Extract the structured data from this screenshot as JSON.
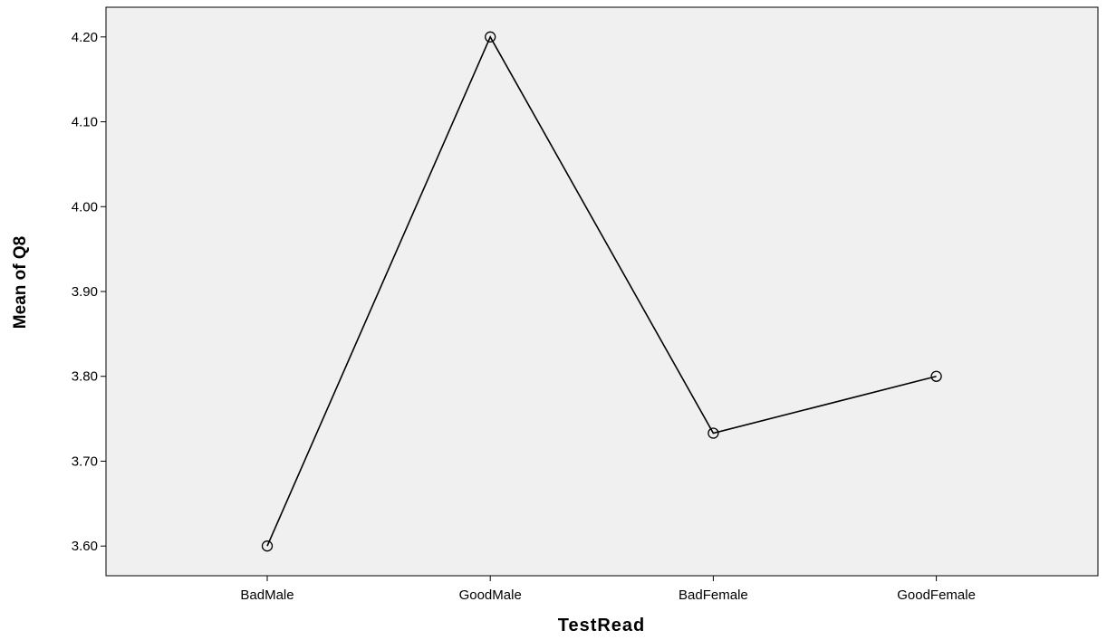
{
  "chart_data": {
    "type": "line",
    "xlabel": "TestRead",
    "ylabel": "Mean of Q8",
    "categories": [
      "BadMale",
      "GoodMale",
      "BadFemale",
      "GoodFemale"
    ],
    "values": [
      3.6,
      4.2,
      3.733,
      3.8
    ],
    "y_ticks": [
      "3.60",
      "3.70",
      "3.80",
      "3.90",
      "4.00",
      "4.10",
      "4.20"
    ],
    "ylim": [
      3.565,
      4.235
    ],
    "grid": false,
    "legend": "none",
    "colors": {
      "plot_background": "#f0f0f0",
      "line": "#000000",
      "marker": "#000000"
    }
  }
}
